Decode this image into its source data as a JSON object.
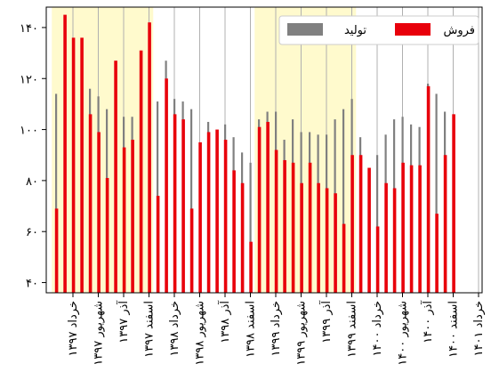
{
  "chart_data": {
    "type": "bar",
    "title": "",
    "xlabel": "",
    "ylabel": "",
    "ylim": [
      36,
      148
    ],
    "yticks": [
      {
        "value": 40,
        "label": "۴۰"
      },
      {
        "value": 60,
        "label": "۶۰"
      },
      {
        "value": 80,
        "label": "۸۰"
      },
      {
        "value": 100,
        "label": "۱۰۰"
      },
      {
        "value": 120,
        "label": "۱۲۰"
      },
      {
        "value": 140,
        "label": "۱۴۰"
      }
    ],
    "xtick_labels": [
      "خرداد ۱۳۹۷",
      "شهریور ۱۳۹۷",
      "آذر ۱۳۹۷",
      "اسفند ۱۳۹۷",
      "خرداد ۱۳۹۸",
      "شهریور ۱۳۹۸",
      "آذر ۱۳۹۸",
      "اسفند ۱۳۹۸",
      "خرداد ۱۳۹۹",
      "شهریور ۱۳۹۹",
      "آذر ۱۳۹۹",
      "اسفند ۱۳۹۹",
      "خرداد ۱۴۰۰",
      "شهریور ۱۴۰۰",
      "آذر ۱۴۰۰",
      "اسفند ۱۴۰۰",
      "خرداد ۱۴۰۱"
    ],
    "xtick_month_offsets": [
      2,
      5,
      8,
      11,
      14,
      17,
      20,
      23,
      26,
      29,
      32,
      35,
      38,
      41,
      44,
      47,
      50
    ],
    "highlight_ranges": [
      [
        0,
        12
      ],
      [
        24,
        36
      ]
    ],
    "series": [
      {
        "name": "تولید",
        "color": "#808080",
        "values": [
          114,
          121,
          124,
          115,
          116,
          113,
          108,
          111,
          105,
          105,
          119,
          124,
          111,
          127,
          112,
          111,
          108,
          75,
          103,
          99,
          102,
          97,
          91,
          87,
          104,
          107,
          107,
          96,
          104,
          99,
          99,
          98,
          98,
          104,
          108,
          112,
          97,
          68,
          90,
          98,
          104,
          105,
          102,
          101,
          118,
          114,
          107,
          106
        ]
      },
      {
        "name": "فروش",
        "color": "#e8000b",
        "values": [
          69,
          145,
          136,
          136,
          106,
          99,
          81,
          127,
          93,
          96,
          131,
          142,
          74,
          120,
          106,
          104,
          69,
          95,
          99,
          100,
          96,
          84,
          79,
          56,
          101,
          103,
          92,
          88,
          87,
          79,
          87,
          79,
          77,
          75,
          63,
          90,
          90,
          85,
          62,
          79,
          77,
          87,
          86,
          86,
          117,
          67,
          90,
          106
        ]
      }
    ],
    "legend_position": "top-right"
  }
}
